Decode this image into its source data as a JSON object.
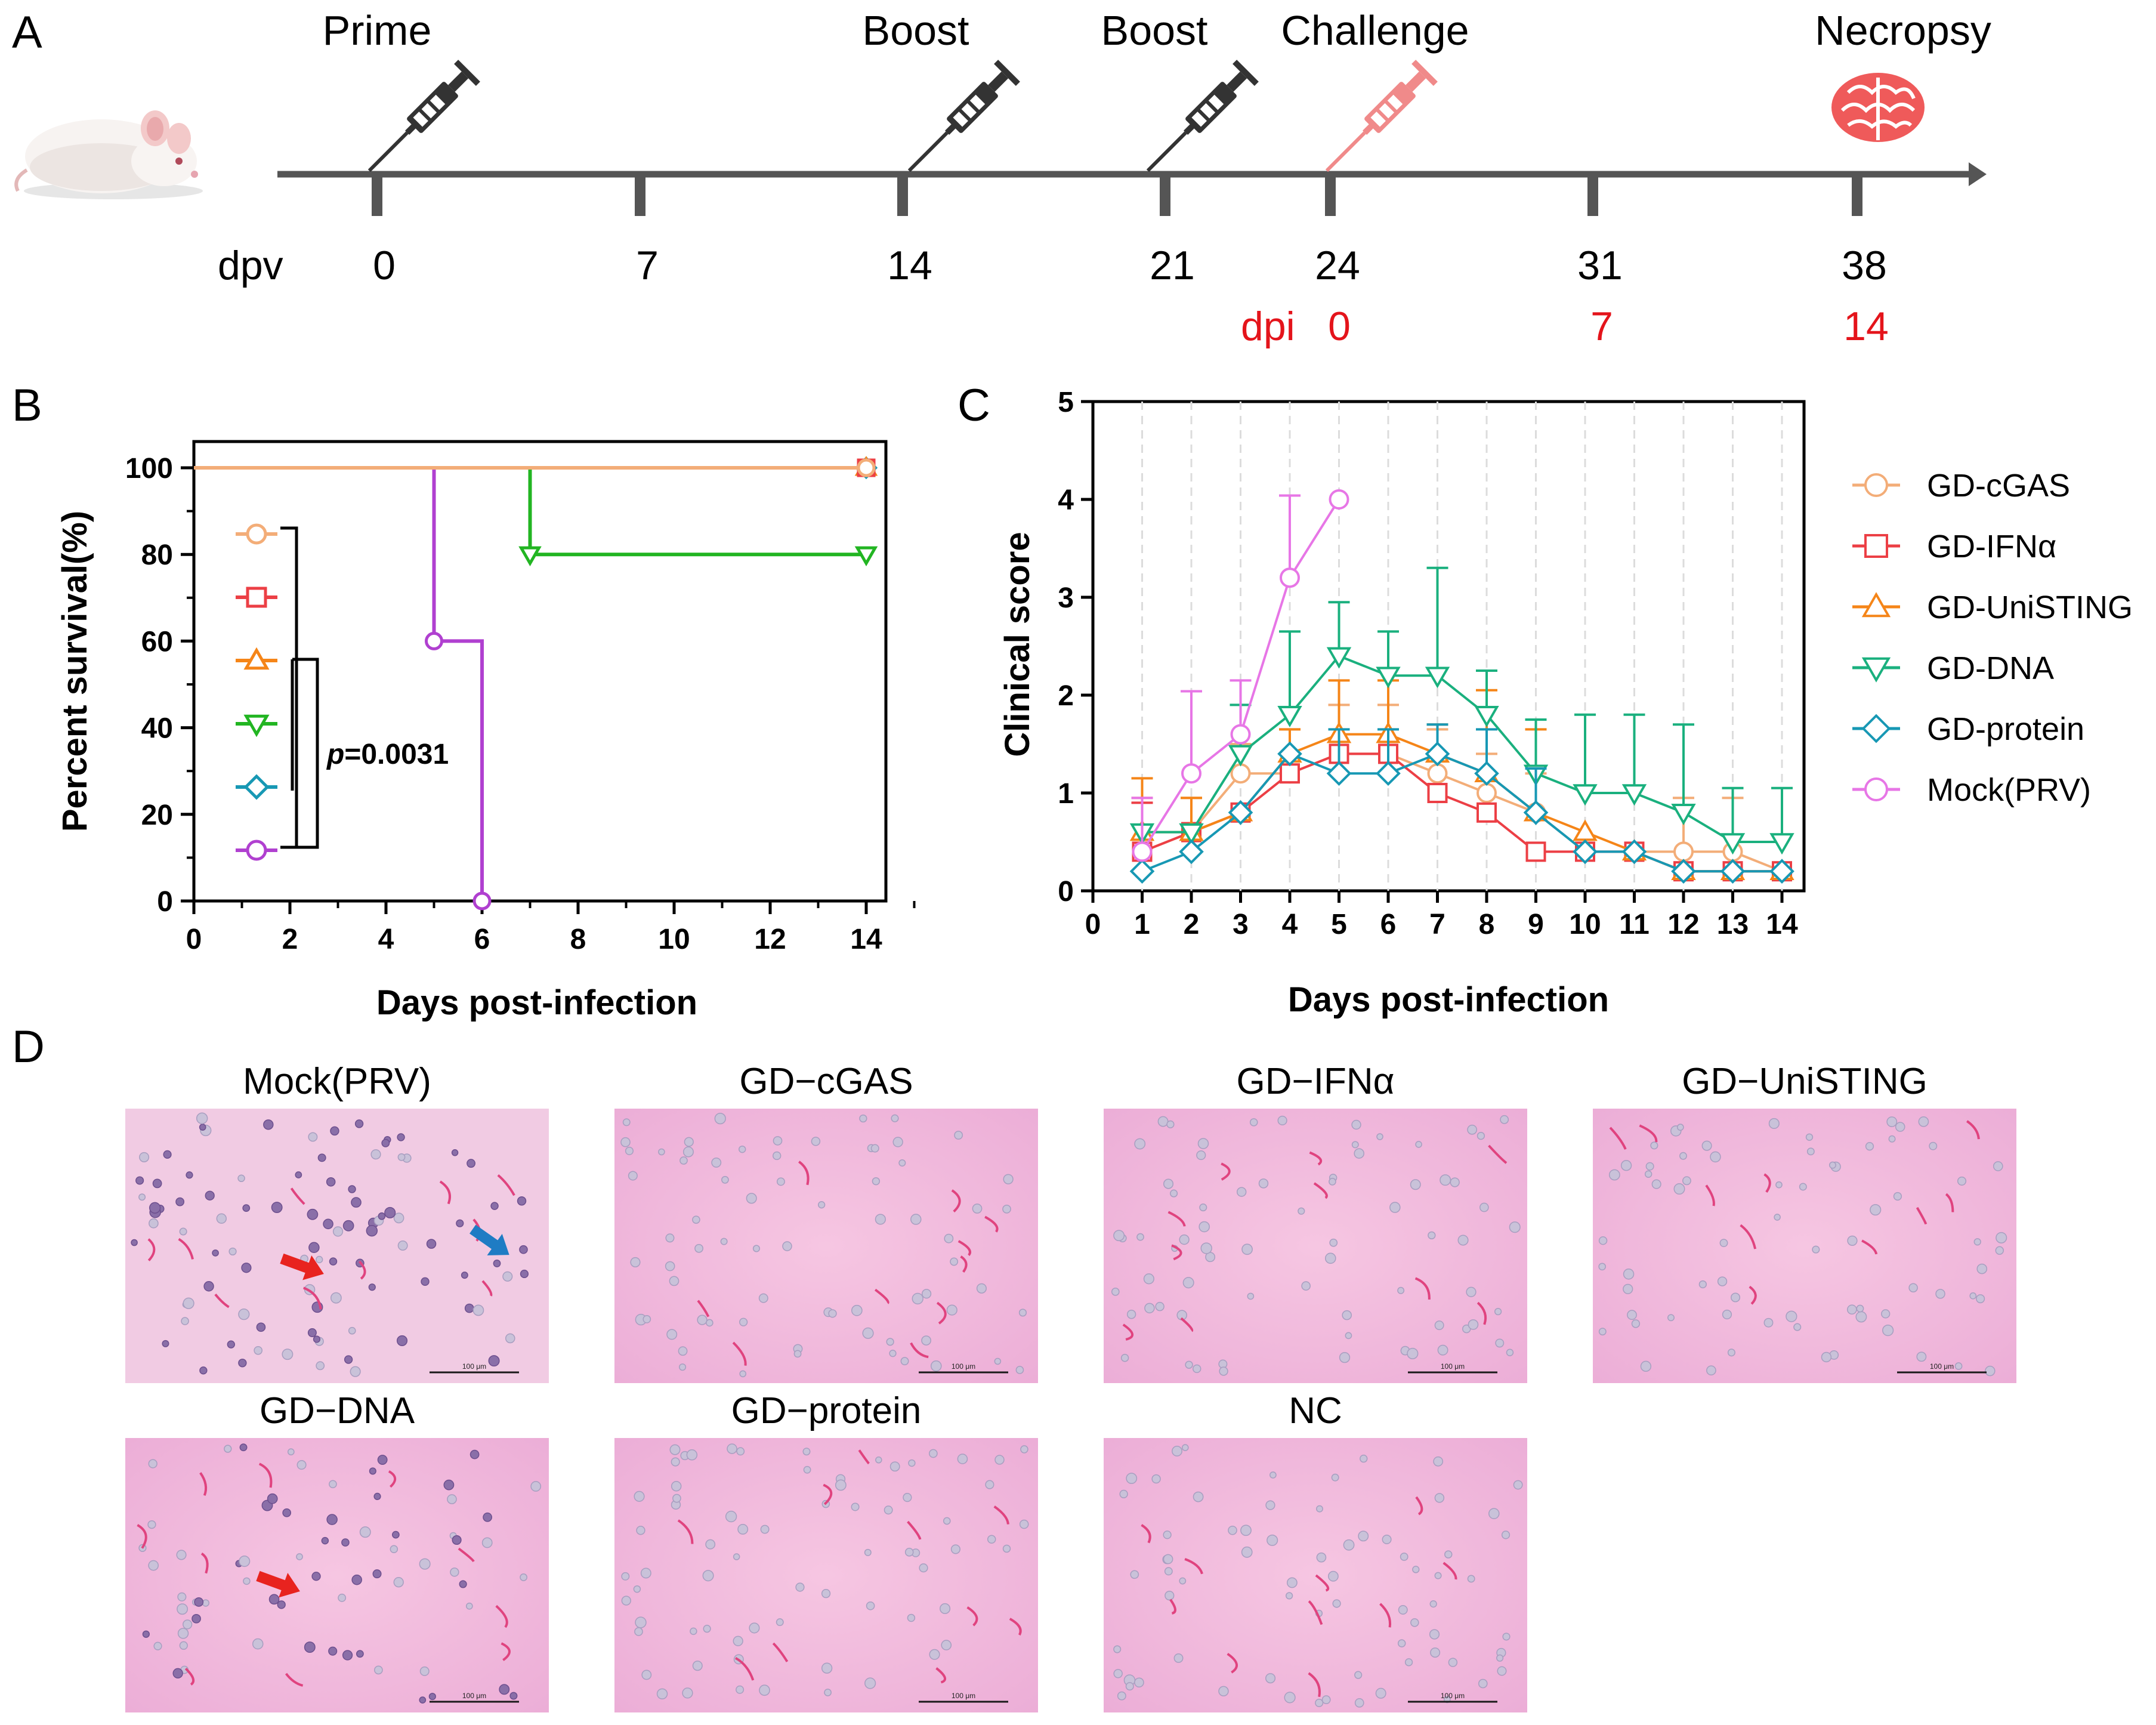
{
  "panel_letters": {
    "a": "A",
    "b": "B",
    "c": "C",
    "d": "D"
  },
  "timeline": {
    "events": [
      {
        "label": "Prime",
        "day": 0,
        "icon": "syringe-icon",
        "color": "#333333"
      },
      {
        "label": "Boost",
        "day": 14,
        "icon": "syringe-icon",
        "color": "#333333"
      },
      {
        "label": "Boost",
        "day": 21,
        "icon": "syringe-icon",
        "color": "#333333"
      },
      {
        "label": "Challenge",
        "day": 24,
        "icon": "syringe-icon",
        "color": "#f08a8a"
      },
      {
        "label": "Necropsy",
        "day": 38,
        "icon": "brain-icon",
        "color": "#ef5a5a"
      }
    ],
    "dpv_label": "dpv",
    "dpv_ticks": [
      "0",
      "7",
      "14",
      "21",
      "24",
      "31",
      "38"
    ],
    "dpi_label": "dpi",
    "dpi_ticks": [
      "0",
      "7",
      "14"
    ],
    "dpi_color": "#e4141b"
  },
  "groups": [
    {
      "name": "GD-cGAS",
      "color": "#f3ad78",
      "marker": "circle"
    },
    {
      "name": "GD-IFNα",
      "color": "#ec3f45",
      "marker": "square"
    },
    {
      "name": "GD-UniSTING",
      "color": "#f58518",
      "marker": "triangle-up"
    },
    {
      "name": "GD-DNA",
      "color": "#1ab07e",
      "marker": "triangle-down"
    },
    {
      "name": "GD-protein",
      "color": "#1798b4",
      "marker": "diamond"
    },
    {
      "name": "Mock(PRV)",
      "color": "#e776e6",
      "marker": "circle"
    }
  ],
  "chart_data": [
    {
      "type": "line",
      "subtype": "kaplan-meier",
      "panel": "B",
      "title": "",
      "xlabel": "Days post-infection",
      "ylabel": "Percent survival(%)",
      "xlim": [
        0,
        15
      ],
      "ylim": [
        0,
        100
      ],
      "xticks": [
        0,
        2,
        4,
        6,
        8,
        10,
        12,
        14
      ],
      "yticks": [
        0,
        20,
        40,
        60,
        80,
        100
      ],
      "annotation": {
        "italic": "p",
        "text": "=0.0031"
      },
      "series": [
        {
          "name": "GD-cGAS",
          "color": "#f3ad78",
          "marker": "circle",
          "steps": [
            [
              0,
              100
            ],
            [
              14,
              100
            ]
          ],
          "censored": [
            [
              14,
              100
            ]
          ]
        },
        {
          "name": "GD-IFNα",
          "color": "#ec3f45",
          "marker": "square",
          "steps": [
            [
              0,
              100
            ],
            [
              14,
              100
            ]
          ],
          "censored": [
            [
              14,
              100
            ]
          ]
        },
        {
          "name": "GD-UniSTING",
          "color": "#f58518",
          "marker": "triangle-up",
          "steps": [
            [
              0,
              100
            ],
            [
              14,
              100
            ]
          ],
          "censored": [
            [
              14,
              100
            ]
          ]
        },
        {
          "name": "GD-DNA",
          "color": "#22b522",
          "marker": "triangle-down",
          "steps": [
            [
              0,
              100
            ],
            [
              7,
              80
            ],
            [
              14,
              80
            ]
          ],
          "censored": [
            [
              7,
              80
            ],
            [
              14,
              80
            ]
          ]
        },
        {
          "name": "GD-protein",
          "color": "#1798b4",
          "marker": "diamond",
          "steps": [
            [
              0,
              100
            ],
            [
              14,
              100
            ]
          ],
          "censored": [
            [
              14,
              100
            ]
          ]
        },
        {
          "name": "Mock(PRV)",
          "color": "#b040d0",
          "marker": "circle",
          "steps": [
            [
              0,
              100
            ],
            [
              5,
              60
            ],
            [
              6,
              0
            ]
          ],
          "censored": [
            [
              5,
              60
            ],
            [
              6,
              0
            ]
          ]
        }
      ]
    },
    {
      "type": "line",
      "panel": "C",
      "title": "",
      "xlabel": "Days post-infection",
      "ylabel": "Clinical score",
      "xlim": [
        0,
        14.5
      ],
      "ylim": [
        0,
        5
      ],
      "xticks": [
        0,
        1,
        2,
        3,
        4,
        5,
        6,
        7,
        8,
        9,
        10,
        11,
        12,
        13,
        14
      ],
      "yticks": [
        0,
        1,
        2,
        3,
        4,
        5
      ],
      "grid": "vertical dashed",
      "legend": "right",
      "series": [
        {
          "name": "GD-cGAS",
          "color": "#f3ad78",
          "marker": "circle",
          "x": [
            1,
            2,
            3,
            4,
            5,
            6,
            7,
            8,
            9,
            10,
            11,
            12,
            13,
            14
          ],
          "y": [
            0.4,
            0.6,
            1.2,
            1.2,
            1.4,
            1.4,
            1.2,
            1.0,
            0.8,
            0.4,
            0.4,
            0.4,
            0.4,
            0.2
          ],
          "err": [
            0.55,
            0.35,
            0.3,
            0.45,
            0.5,
            0.5,
            0.45,
            0.4,
            0.4,
            0.0,
            0.0,
            0.55,
            0.55,
            0.0
          ]
        },
        {
          "name": "GD-IFNα",
          "color": "#ec3f45",
          "marker": "square",
          "x": [
            1,
            2,
            3,
            4,
            5,
            6,
            7,
            8,
            9,
            10,
            11,
            12,
            13,
            14
          ],
          "y": [
            0.4,
            0.6,
            0.8,
            1.2,
            1.4,
            1.4,
            1.0,
            0.8,
            0.4,
            0.4,
            0.4,
            0.2,
            0.2,
            0.2
          ],
          "err": [
            0.5,
            0.0,
            0.0,
            0.0,
            0.0,
            0.0,
            0.0,
            0.0,
            0.0,
            0.0,
            0.0,
            0.0,
            0.0,
            0.0
          ]
        },
        {
          "name": "GD-UniSTING",
          "color": "#f58518",
          "marker": "triangle-up",
          "x": [
            1,
            2,
            3,
            4,
            5,
            6,
            7,
            8,
            9,
            10,
            11,
            12,
            13,
            14
          ],
          "y": [
            0.6,
            0.6,
            0.8,
            1.4,
            1.6,
            1.6,
            1.4,
            1.2,
            0.8,
            0.6,
            0.4,
            0.2,
            0.2,
            0.2
          ],
          "err": [
            0.55,
            0.35,
            0.0,
            0.25,
            0.55,
            0.55,
            0.3,
            0.85,
            0.85,
            0.0,
            0.0,
            0.0,
            0.0,
            0.0
          ]
        },
        {
          "name": "GD-DNA",
          "color": "#1ab07e",
          "marker": "triangle-down",
          "x": [
            1,
            2,
            3,
            4,
            5,
            6,
            7,
            8,
            9,
            10,
            11,
            12,
            13,
            14
          ],
          "y": [
            0.6,
            0.6,
            1.4,
            1.8,
            2.4,
            2.2,
            2.2,
            1.8,
            1.2,
            1.0,
            1.0,
            0.8,
            0.5,
            0.5
          ],
          "err": [
            0.0,
            0.0,
            0.5,
            0.85,
            0.55,
            0.45,
            1.1,
            0.45,
            0.55,
            0.8,
            0.8,
            0.9,
            0.55,
            0.55
          ]
        },
        {
          "name": "GD-protein",
          "color": "#1798b4",
          "marker": "diamond",
          "x": [
            1,
            2,
            3,
            4,
            5,
            6,
            7,
            8,
            9,
            10,
            11,
            12,
            13,
            14
          ],
          "y": [
            0.2,
            0.4,
            0.8,
            1.4,
            1.2,
            1.2,
            1.4,
            1.2,
            0.8,
            0.4,
            0.4,
            0.2,
            0.2,
            0.2
          ],
          "err": [
            0.0,
            0.0,
            0.0,
            0.0,
            0.45,
            0.45,
            0.3,
            0.45,
            0.45,
            0.0,
            0.0,
            0.0,
            0.0,
            0.0
          ]
        },
        {
          "name": "Mock(PRV)",
          "color": "#e776e6",
          "marker": "circle",
          "x": [
            1,
            2,
            3,
            4,
            5
          ],
          "y": [
            0.4,
            1.2,
            1.6,
            3.2,
            4.0
          ],
          "err": [
            0.55,
            0.84,
            0.55,
            0.84,
            0.0
          ]
        }
      ]
    }
  ],
  "micrographs": [
    {
      "title": "Mock(PRV)",
      "scale_label": "100 μm",
      "arrows": [
        {
          "color": "#e8231f"
        },
        {
          "color": "#1f7cc4"
        }
      ]
    },
    {
      "title": "GD−cGAS",
      "scale_label": "100 μm",
      "arrows": []
    },
    {
      "title": "GD−IFNα",
      "scale_label": "100 μm",
      "arrows": []
    },
    {
      "title": "GD−UniSTING",
      "scale_label": "100 μm",
      "arrows": []
    },
    {
      "title": "GD−DNA",
      "scale_label": "100 μm",
      "arrows": [
        {
          "color": "#e8231f"
        }
      ]
    },
    {
      "title": "GD−protein",
      "scale_label": "100 μm",
      "arrows": []
    },
    {
      "title": "NC",
      "scale_label": "100 μm",
      "arrows": []
    }
  ]
}
